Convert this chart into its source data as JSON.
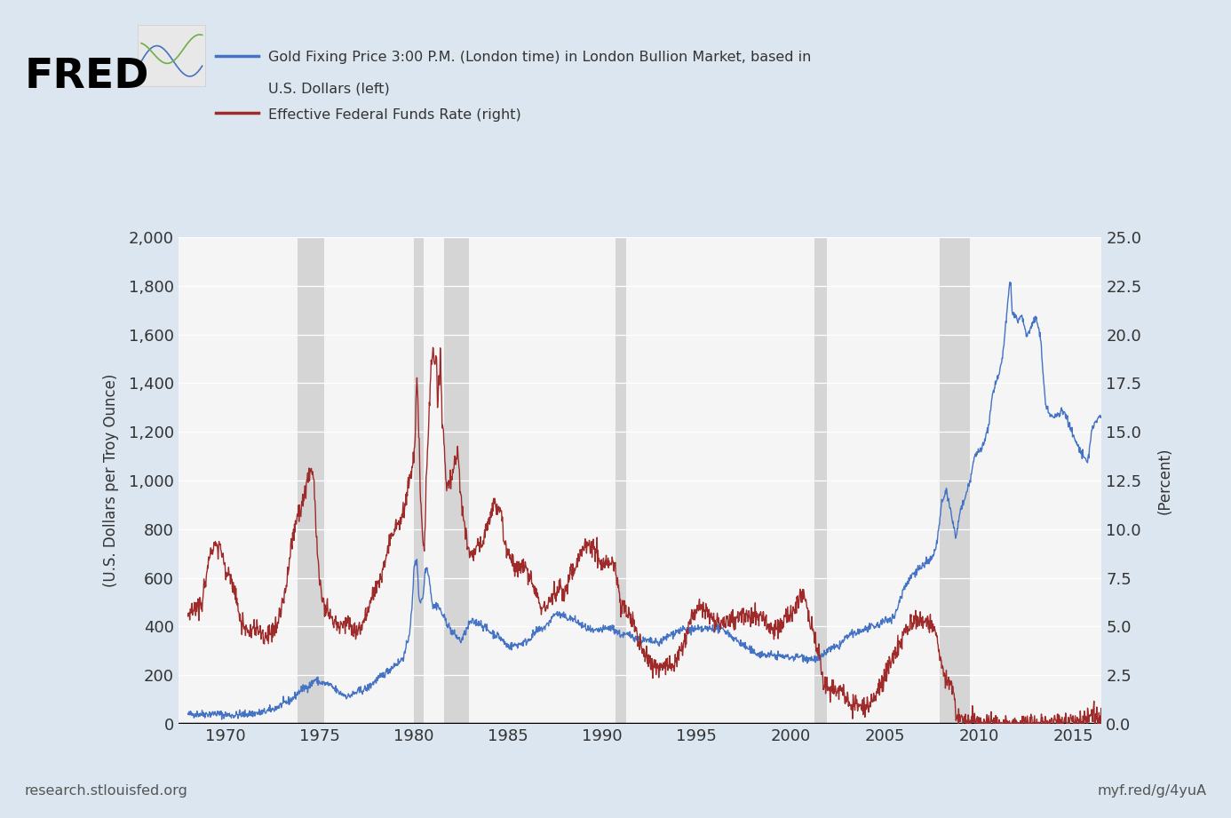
{
  "background_color": "#dce6f0",
  "plot_bg_color": "#f5f5f5",
  "gold_color": "#4472c4",
  "ffr_color": "#9e2a2a",
  "recession_color": "#d0d0d0",
  "recession_alpha": 0.85,
  "title_gold": "Gold Fixing Price 3:00 P.M. (London time) in London Bullion Market, based in\nU.S. Dollars (left)",
  "title_ffr": "Effective Federal Funds Rate (right)",
  "ylabel_left": "(U.S. Dollars per Troy Ounce)",
  "ylabel_right": "(Percent)",
  "ylim_left": [
    0,
    2000
  ],
  "ylim_right": [
    0.0,
    25.0
  ],
  "yticks_left": [
    0,
    200,
    400,
    600,
    800,
    1000,
    1200,
    1400,
    1600,
    1800,
    2000
  ],
  "yticks_right": [
    0.0,
    2.5,
    5.0,
    7.5,
    10.0,
    12.5,
    15.0,
    17.5,
    20.0,
    22.5,
    25.0
  ],
  "recession_bands": [
    [
      1973.83,
      1975.25
    ],
    [
      1980.0,
      1980.5
    ],
    [
      1981.58,
      1982.92
    ],
    [
      1990.67,
      1991.25
    ],
    [
      2001.25,
      2001.92
    ],
    [
      2007.92,
      2009.5
    ]
  ],
  "watermark_left": "research.stlouisfed.org",
  "watermark_right": "myf.red/g/4yuA",
  "xlim": [
    1967.5,
    2016.5
  ],
  "xticks": [
    1970,
    1975,
    1980,
    1985,
    1990,
    1995,
    2000,
    2005,
    2010,
    2015
  ]
}
